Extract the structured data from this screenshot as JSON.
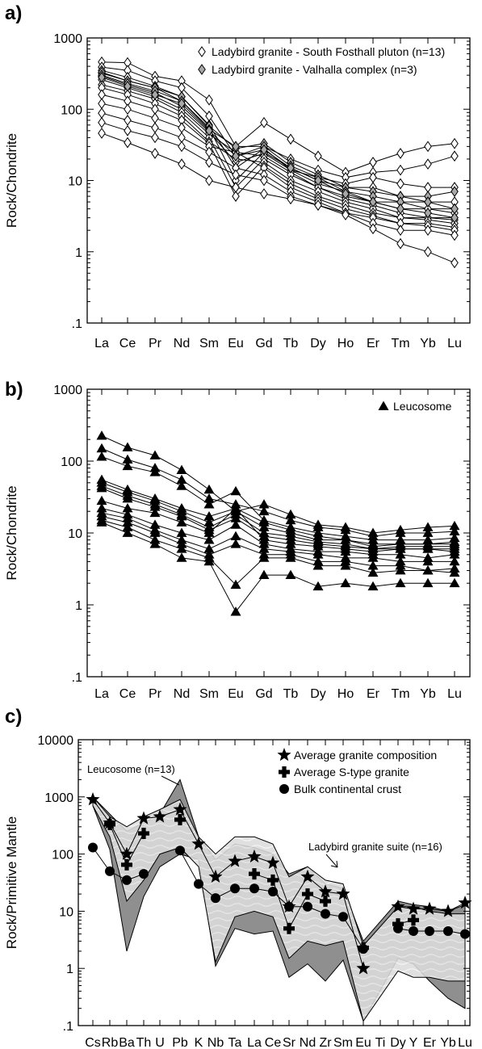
{
  "chart_data": [
    {
      "id": "a",
      "type": "line",
      "panel_label": "a)",
      "ylabel": "Rock/Chondrite",
      "yscale": "log",
      "ylim": [
        0.1,
        1000
      ],
      "yticks": [
        "1000",
        "100",
        "10",
        "1",
        ".1"
      ],
      "categories": [
        "La",
        "Ce",
        "Pr",
        "Nd",
        "Sm",
        "Eu",
        "Gd",
        "Tb",
        "Dy",
        "Ho",
        "Er",
        "Tm",
        "Yb",
        "Lu"
      ],
      "legend_position": "top-right",
      "legend": [
        {
          "label": "Ladybird granite - South Fosthall pluton (n=13)",
          "marker": "diamond-open"
        },
        {
          "label": "Ladybird granite - Valhalla complex (n=3)",
          "marker": "diamond-gray"
        }
      ],
      "series": [
        {
          "marker": "diamond-open",
          "values": [
            460,
            450,
            290,
            250,
            135,
            30,
            65,
            38,
            22,
            13,
            18,
            24,
            30,
            33
          ]
        },
        {
          "marker": "diamond-open",
          "values": [
            390,
            350,
            250,
            200,
            80,
            22,
            30,
            20,
            14,
            11,
            13,
            14,
            17,
            22
          ]
        },
        {
          "marker": "diamond-open",
          "values": [
            350,
            280,
            210,
            150,
            60,
            15,
            28,
            14,
            11,
            9,
            11,
            9,
            8,
            8
          ]
        },
        {
          "marker": "diamond-open",
          "values": [
            320,
            250,
            200,
            130,
            55,
            10,
            25,
            15,
            10,
            8,
            8,
            6,
            5,
            5
          ]
        },
        {
          "marker": "diamond-open",
          "values": [
            290,
            220,
            170,
            110,
            48,
            18,
            24,
            14,
            9,
            7,
            5,
            5,
            4,
            4
          ]
        },
        {
          "marker": "diamond-open",
          "values": [
            260,
            200,
            150,
            100,
            45,
            25,
            22,
            13,
            8,
            6,
            5,
            4,
            4,
            3.5
          ]
        },
        {
          "marker": "diamond-open",
          "values": [
            220,
            180,
            140,
            90,
            40,
            8,
            20,
            12,
            8,
            5.5,
            4.5,
            3.5,
            3,
            3
          ]
        },
        {
          "marker": "diamond-open",
          "values": [
            200,
            160,
            120,
            80,
            35,
            20,
            18,
            10,
            7,
            5,
            4,
            3,
            3,
            2.8
          ]
        },
        {
          "marker": "diamond-open",
          "values": [
            160,
            130,
            100,
            70,
            33,
            6,
            16,
            9,
            6,
            4.5,
            3.5,
            3,
            2.8,
            2.5
          ]
        },
        {
          "marker": "diamond-open",
          "values": [
            120,
            100,
            75,
            55,
            30,
            25,
            15,
            8,
            5.5,
            4,
            3.2,
            2.5,
            2.5,
            2.2
          ]
        },
        {
          "marker": "diamond-open",
          "values": [
            88,
            70,
            55,
            40,
            25,
            15,
            12,
            7,
            5,
            3.5,
            3,
            2.5,
            2.3,
            2
          ]
        },
        {
          "marker": "diamond-open",
          "values": [
            65,
            50,
            40,
            30,
            18,
            12,
            10,
            6,
            4.5,
            3.5,
            2.5,
            2,
            2,
            1.7
          ]
        },
        {
          "marker": "diamond-open",
          "values": [
            46,
            34,
            24,
            17,
            10,
            8,
            6.5,
            5.5,
            4.5,
            3.3,
            2.1,
            1.3,
            1.0,
            0.7
          ]
        },
        {
          "marker": "diamond-gray",
          "values": [
            330,
            250,
            200,
            150,
            58,
            28,
            33,
            18,
            12,
            8,
            7,
            6,
            6,
            7
          ]
        },
        {
          "marker": "diamond-gray",
          "values": [
            300,
            230,
            180,
            130,
            52,
            30,
            30,
            16,
            11,
            7,
            6,
            5,
            5,
            4
          ]
        },
        {
          "marker": "diamond-gray",
          "values": [
            280,
            210,
            160,
            120,
            50,
            22,
            27,
            15,
            10,
            6.5,
            5,
            4,
            3.5,
            3
          ]
        }
      ]
    },
    {
      "id": "b",
      "type": "line",
      "panel_label": "b)",
      "ylabel": "Rock/Chondrite",
      "yscale": "log",
      "ylim": [
        0.1,
        1000
      ],
      "yticks": [
        "1000",
        "100",
        "10",
        "1",
        ".1"
      ],
      "categories": [
        "La",
        "Ce",
        "Pr",
        "Nd",
        "Sm",
        "Eu",
        "Gd",
        "Tb",
        "Dy",
        "Ho",
        "Er",
        "Tm",
        "Yb",
        "Lu"
      ],
      "legend_position": "top-right",
      "legend": [
        {
          "label": "Leucosome",
          "marker": "triangle-filled"
        }
      ],
      "series": [
        {
          "marker": "triangle-filled",
          "values": [
            225,
            155,
            120,
            75,
            40,
            20,
            25,
            18,
            13,
            12,
            10,
            11,
            12,
            12.5
          ]
        },
        {
          "marker": "triangle-filled",
          "values": [
            150,
            105,
            80,
            55,
            30,
            25,
            20,
            15,
            12,
            11,
            9,
            10,
            10,
            10.5
          ]
        },
        {
          "marker": "triangle-filled",
          "values": [
            115,
            85,
            70,
            45,
            25,
            38,
            15,
            12,
            10,
            9,
            8,
            8,
            8,
            8.5
          ]
        },
        {
          "marker": "triangle-filled",
          "values": [
            55,
            40,
            30,
            22,
            17,
            22,
            14,
            11,
            9,
            8,
            7,
            7,
            7,
            7.5
          ]
        },
        {
          "marker": "triangle-filled",
          "values": [
            50,
            37,
            28,
            20,
            14,
            20,
            12,
            10,
            8,
            8,
            6.5,
            7,
            7,
            7
          ]
        },
        {
          "marker": "triangle-filled",
          "values": [
            45,
            33,
            25,
            18,
            12,
            18,
            10,
            9,
            7.5,
            7,
            6,
            6.5,
            6.5,
            6.5
          ]
        },
        {
          "marker": "triangle-filled",
          "values": [
            42,
            30,
            23,
            17,
            11,
            16,
            9,
            8,
            7,
            6.5,
            6,
            6,
            6,
            6
          ]
        },
        {
          "marker": "triangle-filled",
          "values": [
            28,
            22,
            19,
            14,
            10,
            22,
            8,
            7,
            6.5,
            6,
            5.5,
            6,
            6,
            5.5
          ]
        },
        {
          "marker": "triangle-filled",
          "values": [
            22,
            18,
            13,
            10,
            8,
            13,
            7,
            6,
            5.5,
            5.5,
            5,
            5,
            4.5,
            5
          ]
        },
        {
          "marker": "triangle-filled",
          "values": [
            19,
            16,
            11,
            8,
            6,
            9,
            6,
            5.5,
            5,
            4.5,
            4.5,
            4,
            4,
            4
          ]
        },
        {
          "marker": "triangle-filled",
          "values": [
            17,
            14,
            10,
            7,
            5,
            7,
            5,
            5,
            4,
            4,
            3.5,
            3.5,
            3,
            3.2
          ]
        },
        {
          "marker": "triangle-filled",
          "values": [
            15,
            12,
            8,
            6,
            4.5,
            1.9,
            4.5,
            4.5,
            3.5,
            3.5,
            2.8,
            3,
            3,
            2.8
          ]
        },
        {
          "marker": "triangle-filled",
          "values": [
            14,
            10,
            7,
            4.5,
            4,
            0.8,
            2.6,
            2.6,
            1.8,
            2,
            1.8,
            2,
            2,
            2
          ]
        }
      ]
    },
    {
      "id": "c",
      "type": "line",
      "panel_label": "c)",
      "ylabel": "Rock/Primitive Mantle",
      "yscale": "log",
      "ylim": [
        0.1,
        10000
      ],
      "yticks": [
        "10000",
        "1000",
        "100",
        "10",
        "1",
        ".1"
      ],
      "categories": [
        "Cs",
        "Rb",
        "Ba",
        "Th",
        "U",
        "Pb",
        "K",
        "Nb",
        "Ta",
        "La",
        "Ce",
        "Sr",
        "Nd",
        "Zr",
        "Sm",
        "Eu",
        "Ti",
        "Dy",
        "Y",
        "Er",
        "Yb",
        "Lu"
      ],
      "legend_position": "top-right",
      "legend": [
        {
          "label": "Average granite composition",
          "marker": "star"
        },
        {
          "label": "Average S-type granite",
          "marker": "cross"
        },
        {
          "label": "Bulk continental crust",
          "marker": "circle"
        }
      ],
      "annotations": [
        {
          "text": "Leucosome (n=13)"
        },
        {
          "text": "Ladybird granite suite (n=16)"
        }
      ],
      "series": [
        {
          "name": "Average granite composition",
          "marker": "star",
          "values": [
            900,
            350,
            100,
            420,
            450,
            600,
            150,
            40,
            75,
            90,
            70,
            12,
            40,
            22,
            20,
            1.0,
            null,
            12,
            11,
            11,
            10,
            14
          ]
        },
        {
          "name": "Average S-type granite",
          "marker": "cross",
          "values": [
            null,
            330,
            65,
            230,
            null,
            400,
            null,
            null,
            null,
            45,
            35,
            5,
            20,
            15,
            null,
            2.3,
            null,
            6,
            7,
            null,
            null,
            null
          ]
        },
        {
          "name": "Bulk continental crust",
          "marker": "circle",
          "values": [
            130,
            50,
            35,
            45,
            null,
            115,
            30,
            17,
            25,
            25,
            22,
            12,
            12,
            9,
            8,
            2.2,
            null,
            5,
            4.5,
            4.5,
            4.5,
            4
          ]
        }
      ],
      "envelopes": [
        {
          "name": "Leucosome (n=13)",
          "fill": "#8f8f8f",
          "upper": [
            1000,
            500,
            250,
            350,
            500,
            2000,
            200,
            80,
            150,
            130,
            100,
            45,
            60,
            30,
            25,
            3,
            null,
            15,
            13,
            12,
            10,
            13
          ],
          "lower": [
            700,
            120,
            2,
            18,
            60,
            100,
            80,
            1.1,
            5,
            4,
            4.5,
            0.7,
            1.2,
            0.6,
            1.4,
            0.12,
            null,
            1.5,
            1.2,
            0.6,
            0.3,
            0.2
          ]
        },
        {
          "name": "Ladybird granite suite (n=16)",
          "fill": "#dcdcdc",
          "upper": [
            1000,
            450,
            300,
            450,
            600,
            900,
            200,
            100,
            200,
            200,
            150,
            40,
            60,
            35,
            30,
            2.5,
            null,
            12,
            12,
            10,
            9,
            9
          ],
          "lower": [
            700,
            200,
            15,
            35,
            100,
            130,
            60,
            1.3,
            8,
            10,
            8,
            1.5,
            3,
            2.5,
            3,
            0.12,
            null,
            0.9,
            0.7,
            0.7,
            0.6,
            0.6
          ]
        }
      ]
    }
  ]
}
